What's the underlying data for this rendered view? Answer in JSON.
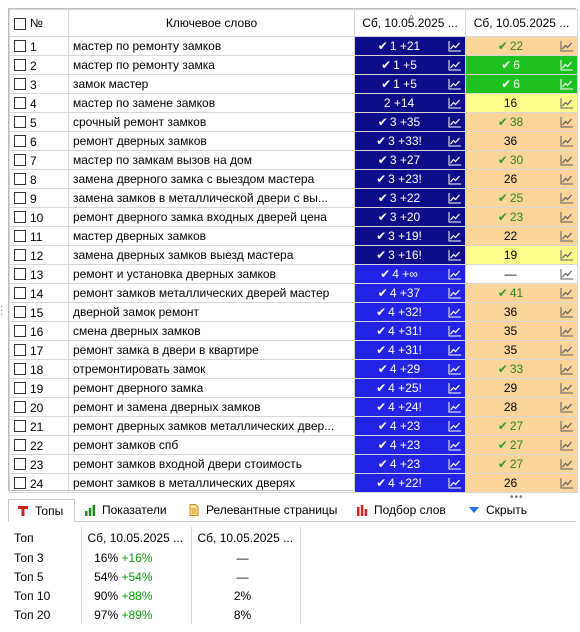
{
  "colors": {
    "navy": "#0d0d8a",
    "blue": "#2323e6",
    "brightblue": "#1515ff",
    "green": "#1ec21e",
    "lightyellow": "#fdfd8c",
    "peach": "#fcd59a",
    "white": "#ffffff",
    "checkgreen": "#2e9a2e"
  },
  "grid": {
    "header": {
      "num": "№",
      "keyword": "Ключевое слово",
      "date1": "Сб, 10.05.2025 ...",
      "date2": "Сб, 10.05.2025 ..."
    },
    "rows": [
      {
        "num": "1",
        "keyword": "мастер по ремонту замков",
        "p1": "1 +21",
        "p1_check": true,
        "p1_bg": "navy",
        "p2": "22",
        "p2_check": true,
        "p2_bg": "peach"
      },
      {
        "num": "2",
        "keyword": "мастер по ремонту замка",
        "p1": "1 +5",
        "p1_check": true,
        "p1_bg": "navy",
        "p2": "6",
        "p2_check": true,
        "p2_bg": "green"
      },
      {
        "num": "3",
        "keyword": "замок мастер",
        "p1": "1 +5",
        "p1_check": true,
        "p1_bg": "navy",
        "p2": "6",
        "p2_check": true,
        "p2_bg": "green"
      },
      {
        "num": "4",
        "keyword": "мастер по замене замков",
        "p1": "2 +14",
        "p1_check": false,
        "p1_bg": "navy",
        "p2": "16",
        "p2_check": false,
        "p2_bg": "lightyellow"
      },
      {
        "num": "5",
        "keyword": "срочный ремонт замков",
        "p1": "3 +35",
        "p1_check": true,
        "p1_bg": "navy",
        "p2": "38",
        "p2_check": true,
        "p2_bg": "peach"
      },
      {
        "num": "6",
        "keyword": "ремонт дверных замков",
        "p1": "3 +33!",
        "p1_check": true,
        "p1_bg": "navy",
        "p2": "36",
        "p2_check": false,
        "p2_bg": "peach"
      },
      {
        "num": "7",
        "keyword": "мастер по замкам вызов на дом",
        "p1": "3 +27",
        "p1_check": true,
        "p1_bg": "navy",
        "p2": "30",
        "p2_check": true,
        "p2_bg": "peach"
      },
      {
        "num": "8",
        "keyword": "замена дверного замка с выездом мастера",
        "p1": "3 +23!",
        "p1_check": true,
        "p1_bg": "navy",
        "p2": "26",
        "p2_check": false,
        "p2_bg": "peach"
      },
      {
        "num": "9",
        "keyword": "замена замков в металлической двери с вы...",
        "p1": "3 +22",
        "p1_check": true,
        "p1_bg": "navy",
        "p2": "25",
        "p2_check": true,
        "p2_bg": "peach"
      },
      {
        "num": "10",
        "keyword": "ремонт дверного замка входных дверей цена",
        "p1": "3 +20",
        "p1_check": true,
        "p1_bg": "navy",
        "p2": "23",
        "p2_check": true,
        "p2_bg": "peach"
      },
      {
        "num": "11",
        "keyword": "мастер дверных замков",
        "p1": "3 +19!",
        "p1_check": true,
        "p1_bg": "navy",
        "p2": "22",
        "p2_check": false,
        "p2_bg": "peach"
      },
      {
        "num": "12",
        "keyword": "замена дверных замков выезд мастера",
        "p1": "3 +16!",
        "p1_check": true,
        "p1_bg": "navy",
        "p2": "19",
        "p2_check": false,
        "p2_bg": "lightyellow"
      },
      {
        "num": "13",
        "keyword": "ремонт и установка дверных замков",
        "p1": "4 +∞",
        "p1_check": true,
        "p1_bg": "blue",
        "p2": "—",
        "p2_check": false,
        "p2_bg": "white"
      },
      {
        "num": "14",
        "keyword": "ремонт замков металлических дверей мастер",
        "p1": "4 +37",
        "p1_check": true,
        "p1_bg": "blue",
        "p2": "41",
        "p2_check": true,
        "p2_bg": "peach"
      },
      {
        "num": "15",
        "keyword": "дверной замок ремонт",
        "p1": "4 +32!",
        "p1_check": true,
        "p1_bg": "blue",
        "p2": "36",
        "p2_check": false,
        "p2_bg": "peach"
      },
      {
        "num": "16",
        "keyword": "смена дверных замков",
        "p1": "4 +31!",
        "p1_check": true,
        "p1_bg": "blue",
        "p2": "35",
        "p2_check": false,
        "p2_bg": "peach"
      },
      {
        "num": "17",
        "keyword": "ремонт замка в двери в квартире",
        "p1": "4 +31!",
        "p1_check": true,
        "p1_bg": "blue",
        "p2": "35",
        "p2_check": false,
        "p2_bg": "peach"
      },
      {
        "num": "18",
        "keyword": "отремонтировать замок",
        "p1": "4 +29",
        "p1_check": true,
        "p1_bg": "blue",
        "p2": "33",
        "p2_check": true,
        "p2_bg": "peach"
      },
      {
        "num": "19",
        "keyword": "ремонт дверного замка",
        "p1": "4 +25!",
        "p1_check": true,
        "p1_bg": "blue",
        "p2": "29",
        "p2_check": false,
        "p2_bg": "peach"
      },
      {
        "num": "20",
        "keyword": "ремонт и замена дверных замков",
        "p1": "4 +24!",
        "p1_check": true,
        "p1_bg": "blue",
        "p2": "28",
        "p2_check": false,
        "p2_bg": "peach"
      },
      {
        "num": "21",
        "keyword": "ремонт дверных замков металлических двер...",
        "p1": "4 +23",
        "p1_check": true,
        "p1_bg": "blue",
        "p2": "27",
        "p2_check": true,
        "p2_bg": "peach"
      },
      {
        "num": "22",
        "keyword": "ремонт замков спб",
        "p1": "4 +23",
        "p1_check": true,
        "p1_bg": "blue",
        "p2": "27",
        "p2_check": true,
        "p2_bg": "peach"
      },
      {
        "num": "23",
        "keyword": "ремонт замков входной двери стоимость",
        "p1": "4 +23",
        "p1_check": true,
        "p1_bg": "blue",
        "p2": "27",
        "p2_check": true,
        "p2_bg": "peach"
      },
      {
        "num": "24",
        "keyword": "ремонт замков в металлических дверях",
        "p1": "4 +22!",
        "p1_check": true,
        "p1_bg": "blue",
        "p2": "26",
        "p2_check": false,
        "p2_bg": "peach"
      }
    ]
  },
  "tabs": [
    {
      "label": "Топы",
      "icon": "text-t-icon",
      "active": true
    },
    {
      "label": "Показатели",
      "icon": "bar-chart-icon",
      "active": false
    },
    {
      "label": "Релевантные страницы",
      "icon": "document-icon",
      "active": false
    },
    {
      "label": "Подбор слов",
      "icon": "red-bar-chart-icon",
      "active": false
    },
    {
      "label": "Скрыть",
      "icon": "triangle-down-icon",
      "active": false
    }
  ],
  "tops": {
    "header": {
      "label": "Топ",
      "date1": "Сб, 10.05.2025 ...",
      "date2": "Сб, 10.05.2025 ..."
    },
    "rows": [
      {
        "label": "Топ 3",
        "v1": "16%",
        "d1": "+16%",
        "v2": "—"
      },
      {
        "label": "Топ 5",
        "v1": "54%",
        "d1": "+54%",
        "v2": "—"
      },
      {
        "label": "Топ 10",
        "v1": "90%",
        "d1": "+88%",
        "v2": "2%"
      },
      {
        "label": "Топ 20",
        "v1": "97%",
        "d1": "+89%",
        "v2": "8%"
      }
    ]
  }
}
